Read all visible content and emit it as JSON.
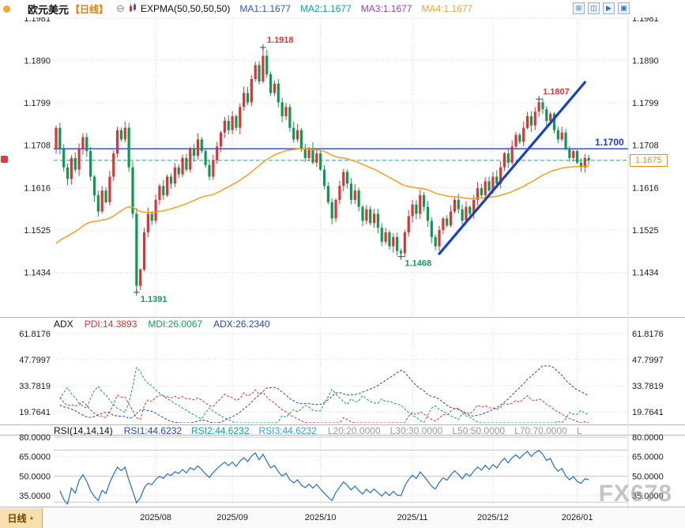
{
  "header": {
    "symbol": "欧元美元",
    "period_tag": "【日线】",
    "collapse_icon": "⊖",
    "indicator_label": "EXPMA(50,50,50,50)",
    "ma_values": [
      {
        "label": "MA1:1.1677",
        "color": "#2f54d4"
      },
      {
        "label": "MA2:1.1677",
        "color": "#00a2a2"
      },
      {
        "label": "MA3:1.1677",
        "color": "#9a3cc8"
      },
      {
        "label": "MA4:1.1677",
        "color": "#e8a33d"
      }
    ],
    "window_icons": [
      {
        "name": "multi-chart-icon",
        "glyph": "⊞"
      },
      {
        "name": "dual-chart-icon",
        "glyph": "◫"
      },
      {
        "name": "scroll-right-icon",
        "glyph": "▶"
      },
      {
        "name": "single-chart-icon",
        "glyph": "▣"
      }
    ]
  },
  "price_axis": {
    "ticks": [
      "1.1981",
      "1.1890",
      "1.1799",
      "1.1708",
      "1.1616",
      "1.1525",
      "1.1434"
    ]
  },
  "hline": {
    "label": "1.1700"
  },
  "last_price": {
    "label": "1.1675"
  },
  "adx": {
    "title": "ADX",
    "pdi": "PDI:14.3893",
    "mdi": "MDI:26.0067",
    "adx": "ADX:26.2340",
    "ticks": [
      "61.8176",
      "47.7997",
      "33.7819",
      "19.7641"
    ]
  },
  "rsi": {
    "title": "RSI(14,14,14)",
    "values": [
      {
        "label": "RSI1:44.6232",
        "color": "#2244cc"
      },
      {
        "label": "RSI2:44.6232",
        "color": "#00a2a2"
      },
      {
        "label": "RSI3:44.6232",
        "color": "#3b9ad9"
      }
    ],
    "levels": [
      "L20:20.0000",
      "L30:30.0000",
      "L50:50.0000",
      "L70:70.0000",
      "L80:80.0000"
    ],
    "ticks": [
      "80.0000",
      "65.0000",
      "50.0000",
      "35.0000"
    ]
  },
  "bottom": {
    "period_button": "日线",
    "x_labels": [
      "2025/08",
      "2025/09",
      "2025/10",
      "2025/11",
      "2025/12",
      "2026/01"
    ]
  },
  "watermark": "FX678",
  "colors": {
    "up": "#e03232",
    "down": "#0b9a4e",
    "ema": "#f59f1e",
    "trend": "#1442cc",
    "support_line": "#2244cc",
    "current_dash": "#2aa198",
    "pdi": "#e03232",
    "mdi": "#12a150",
    "adx": "#2244cc",
    "rsi": "#1f6fd0",
    "grid": "#d9d9d9",
    "divider": "#b5b5b5",
    "axis_text": "#1a1a1a"
  },
  "chart_data": {
    "type": "candlestick",
    "title": "欧元美元 日线 (EUR/USD Daily)",
    "timeframe": "daily",
    "first_open": 1.17,
    "closes": [
      1.1745,
      1.17,
      1.166,
      1.1635,
      1.168,
      1.1655,
      1.17,
      1.1725,
      1.1695,
      1.164,
      1.16,
      1.1565,
      1.161,
      1.1585,
      1.164,
      1.169,
      1.174,
      1.172,
      1.1745,
      1.166,
      1.156,
      1.1405,
      1.144,
      1.152,
      1.156,
      1.1545,
      1.159,
      1.162,
      1.16,
      1.164,
      1.1625,
      1.166,
      1.1645,
      1.168,
      1.1655,
      1.17,
      1.1685,
      1.172,
      1.1695,
      1.1665,
      1.164,
      1.1675,
      1.1705,
      1.1735,
      1.176,
      1.174,
      1.177,
      1.1745,
      1.179,
      1.182,
      1.18,
      1.185,
      1.188,
      1.1845,
      1.19,
      1.186,
      1.182,
      1.184,
      1.18,
      1.177,
      1.179,
      1.1745,
      1.172,
      1.174,
      1.17,
      1.168,
      1.17,
      1.167,
      1.169,
      1.1655,
      1.162,
      1.1585,
      1.155,
      1.159,
      1.162,
      1.165,
      1.1625,
      1.159,
      1.161,
      1.1575,
      1.1545,
      1.157,
      1.154,
      1.156,
      1.153,
      1.15,
      1.152,
      1.149,
      1.151,
      1.148,
      1.1475,
      1.152,
      1.1555,
      1.158,
      1.156,
      1.16,
      1.1575,
      1.1545,
      1.151,
      1.149,
      1.1525,
      1.155,
      1.1535,
      1.1565,
      1.159,
      1.157,
      1.1545,
      1.1575,
      1.156,
      1.159,
      1.1615,
      1.16,
      1.163,
      1.161,
      1.164,
      1.1625,
      1.166,
      1.169,
      1.167,
      1.1705,
      1.173,
      1.1715,
      1.1745,
      1.177,
      1.175,
      1.178,
      1.18,
      1.1785,
      1.176,
      1.1775,
      1.174,
      1.172,
      1.1735,
      1.17,
      1.168,
      1.1695,
      1.167,
      1.166,
      1.168,
      1.1675
    ],
    "extremes": [
      {
        "index": 54,
        "kind": "high",
        "value": 1.1918,
        "label": "1.1918"
      },
      {
        "index": 126,
        "kind": "high",
        "value": 1.1807,
        "label": "1.1807"
      },
      {
        "index": 90,
        "kind": "low",
        "value": 1.1468,
        "label": "1.1468"
      },
      {
        "index": 21,
        "kind": "low",
        "value": 1.1391,
        "label": "1.1391"
      }
    ],
    "month_tick_indices": [
      26,
      46,
      69,
      93,
      114,
      136
    ],
    "y_ticks_price": [
      1.1981,
      1.189,
      1.1799,
      1.1708,
      1.1616,
      1.1525,
      1.1434
    ],
    "support_line_value": 1.17,
    "current_price": 1.1675,
    "trend_line": {
      "from_index": 100,
      "from_price": 1.1474,
      "to_index": 138,
      "to_price": 1.1843
    },
    "indicators": {
      "expma_periods": [
        50,
        50,
        50,
        50
      ],
      "expma_last": 1.1677,
      "adx_last": {
        "pdi": 14.3893,
        "mdi": 26.0067,
        "adx": 26.234
      },
      "rsi_last": [
        44.6232,
        44.6232,
        44.6232
      ],
      "adx_y_ticks": [
        61.8176,
        47.7997,
        33.7819,
        19.7641
      ],
      "rsi_y_ticks": [
        80,
        65,
        50,
        35
      ],
      "rsi_levels": [
        20,
        30,
        50,
        70,
        80
      ]
    }
  }
}
